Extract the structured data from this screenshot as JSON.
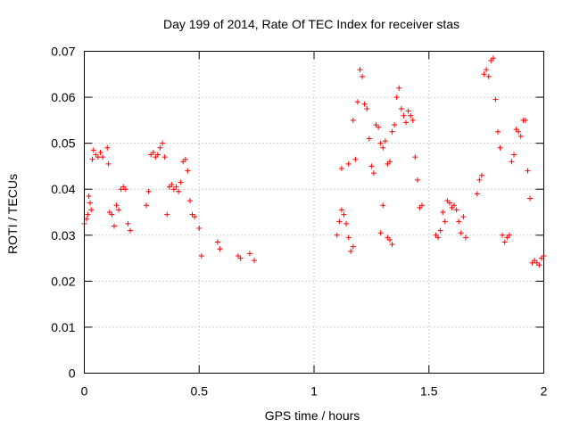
{
  "chart_data": {
    "type": "scatter",
    "title": "Day 199 of 2014, Rate Of TEC Index for receiver stas",
    "xlabel": "GPS time / hours",
    "ylabel": "ROTI / TECUs",
    "xlim": [
      0,
      2
    ],
    "ylim": [
      0,
      0.07
    ],
    "x_ticks": [
      0,
      0.5,
      1,
      1.5,
      2
    ],
    "x_tick_labels": [
      "0",
      "0.5",
      "1",
      "1.5",
      "2"
    ],
    "y_ticks": [
      0,
      0.01,
      0.02,
      0.03,
      0.04,
      0.05,
      0.06,
      0.07
    ],
    "y_tick_labels": [
      "0",
      "0.01",
      "0.02",
      "0.03",
      "0.04",
      "0.05",
      "0.06",
      "0.07"
    ],
    "grid": true,
    "marker": "plus",
    "series": [
      {
        "name": "ROTI",
        "color": "#ff0000",
        "points": [
          [
            0.0,
            0.0325
          ],
          [
            0.01,
            0.0335
          ],
          [
            0.015,
            0.0345
          ],
          [
            0.02,
            0.0385
          ],
          [
            0.025,
            0.037
          ],
          [
            0.03,
            0.0355
          ],
          [
            0.035,
            0.0465
          ],
          [
            0.04,
            0.0485
          ],
          [
            0.05,
            0.0475
          ],
          [
            0.06,
            0.047
          ],
          [
            0.07,
            0.048
          ],
          [
            0.08,
            0.047
          ],
          [
            0.1,
            0.049
          ],
          [
            0.105,
            0.0455
          ],
          [
            0.11,
            0.035
          ],
          [
            0.12,
            0.0345
          ],
          [
            0.13,
            0.032
          ],
          [
            0.14,
            0.0365
          ],
          [
            0.15,
            0.0355
          ],
          [
            0.16,
            0.04
          ],
          [
            0.17,
            0.0405
          ],
          [
            0.18,
            0.04
          ],
          [
            0.19,
            0.0325
          ],
          [
            0.2,
            0.031
          ],
          [
            0.27,
            0.0365
          ],
          [
            0.28,
            0.0395
          ],
          [
            0.29,
            0.0475
          ],
          [
            0.3,
            0.048
          ],
          [
            0.31,
            0.047
          ],
          [
            0.32,
            0.0475
          ],
          [
            0.33,
            0.049
          ],
          [
            0.34,
            0.05
          ],
          [
            0.35,
            0.047
          ],
          [
            0.36,
            0.0345
          ],
          [
            0.37,
            0.0405
          ],
          [
            0.38,
            0.041
          ],
          [
            0.39,
            0.04
          ],
          [
            0.4,
            0.0405
          ],
          [
            0.41,
            0.0395
          ],
          [
            0.42,
            0.0415
          ],
          [
            0.43,
            0.046
          ],
          [
            0.44,
            0.0465
          ],
          [
            0.45,
            0.044
          ],
          [
            0.46,
            0.0375
          ],
          [
            0.47,
            0.0345
          ],
          [
            0.48,
            0.034
          ],
          [
            0.5,
            0.0315
          ],
          [
            0.51,
            0.0255
          ],
          [
            0.58,
            0.0285
          ],
          [
            0.59,
            0.027
          ],
          [
            0.67,
            0.0255
          ],
          [
            0.68,
            0.025
          ],
          [
            0.72,
            0.026
          ],
          [
            0.74,
            0.0245
          ],
          [
            1.1,
            0.03
          ],
          [
            1.11,
            0.033
          ],
          [
            1.12,
            0.0355
          ],
          [
            1.13,
            0.0345
          ],
          [
            1.14,
            0.0325
          ],
          [
            1.15,
            0.0295
          ],
          [
            1.16,
            0.0265
          ],
          [
            1.17,
            0.0275
          ],
          [
            1.12,
            0.0445
          ],
          [
            1.15,
            0.0455
          ],
          [
            1.17,
            0.055
          ],
          [
            1.18,
            0.0465
          ],
          [
            1.19,
            0.059
          ],
          [
            1.2,
            0.066
          ],
          [
            1.21,
            0.0645
          ],
          [
            1.22,
            0.0585
          ],
          [
            1.23,
            0.0575
          ],
          [
            1.24,
            0.051
          ],
          [
            1.25,
            0.045
          ],
          [
            1.26,
            0.0435
          ],
          [
            1.27,
            0.054
          ],
          [
            1.28,
            0.0535
          ],
          [
            1.29,
            0.05
          ],
          [
            1.3,
            0.049
          ],
          [
            1.31,
            0.0505
          ],
          [
            1.32,
            0.0455
          ],
          [
            1.33,
            0.046
          ],
          [
            1.34,
            0.0525
          ],
          [
            1.35,
            0.054
          ],
          [
            1.36,
            0.06
          ],
          [
            1.37,
            0.062
          ],
          [
            1.38,
            0.0575
          ],
          [
            1.39,
            0.056
          ],
          [
            1.4,
            0.0545
          ],
          [
            1.41,
            0.057
          ],
          [
            1.42,
            0.056
          ],
          [
            1.43,
            0.055
          ],
          [
            1.44,
            0.047
          ],
          [
            1.45,
            0.042
          ],
          [
            1.46,
            0.036
          ],
          [
            1.47,
            0.0365
          ],
          [
            1.3,
            0.0365
          ],
          [
            1.32,
            0.0295
          ],
          [
            1.33,
            0.029
          ],
          [
            1.34,
            0.028
          ],
          [
            1.29,
            0.0305
          ],
          [
            1.53,
            0.03
          ],
          [
            1.54,
            0.0295
          ],
          [
            1.55,
            0.031
          ],
          [
            1.56,
            0.035
          ],
          [
            1.57,
            0.033
          ],
          [
            1.58,
            0.0375
          ],
          [
            1.59,
            0.037
          ],
          [
            1.6,
            0.036
          ],
          [
            1.61,
            0.0365
          ],
          [
            1.62,
            0.0355
          ],
          [
            1.63,
            0.033
          ],
          [
            1.64,
            0.0305
          ],
          [
            1.65,
            0.034
          ],
          [
            1.66,
            0.0295
          ],
          [
            1.71,
            0.039
          ],
          [
            1.72,
            0.042
          ],
          [
            1.73,
            0.043
          ],
          [
            1.74,
            0.065
          ],
          [
            1.75,
            0.066
          ],
          [
            1.76,
            0.0645
          ],
          [
            1.77,
            0.068
          ],
          [
            1.78,
            0.0685
          ],
          [
            1.79,
            0.0595
          ],
          [
            1.8,
            0.0525
          ],
          [
            1.81,
            0.049
          ],
          [
            1.82,
            0.03
          ],
          [
            1.83,
            0.0285
          ],
          [
            1.84,
            0.0295
          ],
          [
            1.85,
            0.03
          ],
          [
            1.86,
            0.046
          ],
          [
            1.87,
            0.0475
          ],
          [
            1.88,
            0.053
          ],
          [
            1.89,
            0.0525
          ],
          [
            1.9,
            0.0515
          ],
          [
            1.91,
            0.055
          ],
          [
            1.92,
            0.055
          ],
          [
            1.93,
            0.044
          ],
          [
            1.94,
            0.038
          ],
          [
            1.95,
            0.024
          ],
          [
            1.96,
            0.0245
          ],
          [
            1.97,
            0.024
          ],
          [
            1.98,
            0.0235
          ],
          [
            1.99,
            0.025
          ],
          [
            2.0,
            0.0255
          ]
        ]
      }
    ]
  }
}
